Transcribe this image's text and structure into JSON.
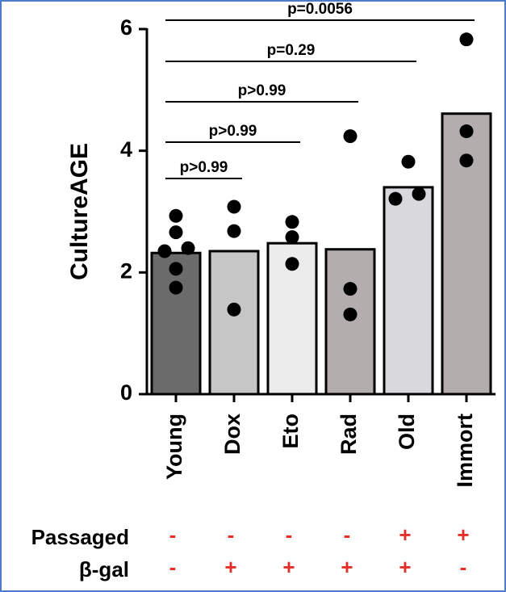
{
  "chart_data": {
    "type": "bar",
    "y_label": "CultureAGE",
    "categories": [
      "Young",
      "Dox",
      "Eto",
      "Rad",
      "Old",
      "Immort"
    ],
    "values": [
      2.32,
      2.35,
      2.48,
      2.38,
      3.4,
      4.61
    ],
    "colors": [
      "#6b6b6b",
      "#c6c6c6",
      "#ececec",
      "#b3adad",
      "#d9d9dd",
      "#b3adad"
    ],
    "replicates": [
      [
        2.93,
        2.66,
        2.35,
        2.4,
        2.06,
        1.75
      ],
      [
        3.08,
        2.68,
        1.39
      ],
      [
        2.83,
        2.58,
        2.14
      ],
      [
        4.24,
        1.73,
        1.31
      ],
      [
        3.82,
        3.29,
        3.21
      ],
      [
        5.83,
        4.32,
        3.84
      ]
    ],
    "ylim": [
      0,
      6
    ],
    "yticks": [
      0,
      2,
      4,
      6
    ],
    "comparisons": [
      {
        "from": "Young",
        "to": "Dox",
        "label": "p>0.99"
      },
      {
        "from": "Young",
        "to": "Eto",
        "label": "p>0.99"
      },
      {
        "from": "Young",
        "to": "Rad",
        "label": "p>0.99"
      },
      {
        "from": "Young",
        "to": "Old",
        "label": "p=0.29"
      },
      {
        "from": "Young",
        "to": "Immort",
        "label": "p=0.0056"
      }
    ],
    "rows": [
      {
        "name": "Passaged",
        "values": [
          "-",
          "-",
          "-",
          "-",
          "+",
          "+"
        ]
      },
      {
        "name": "β-gal",
        "values": [
          "-",
          "+",
          "+",
          "+",
          "+",
          "-"
        ]
      }
    ]
  }
}
